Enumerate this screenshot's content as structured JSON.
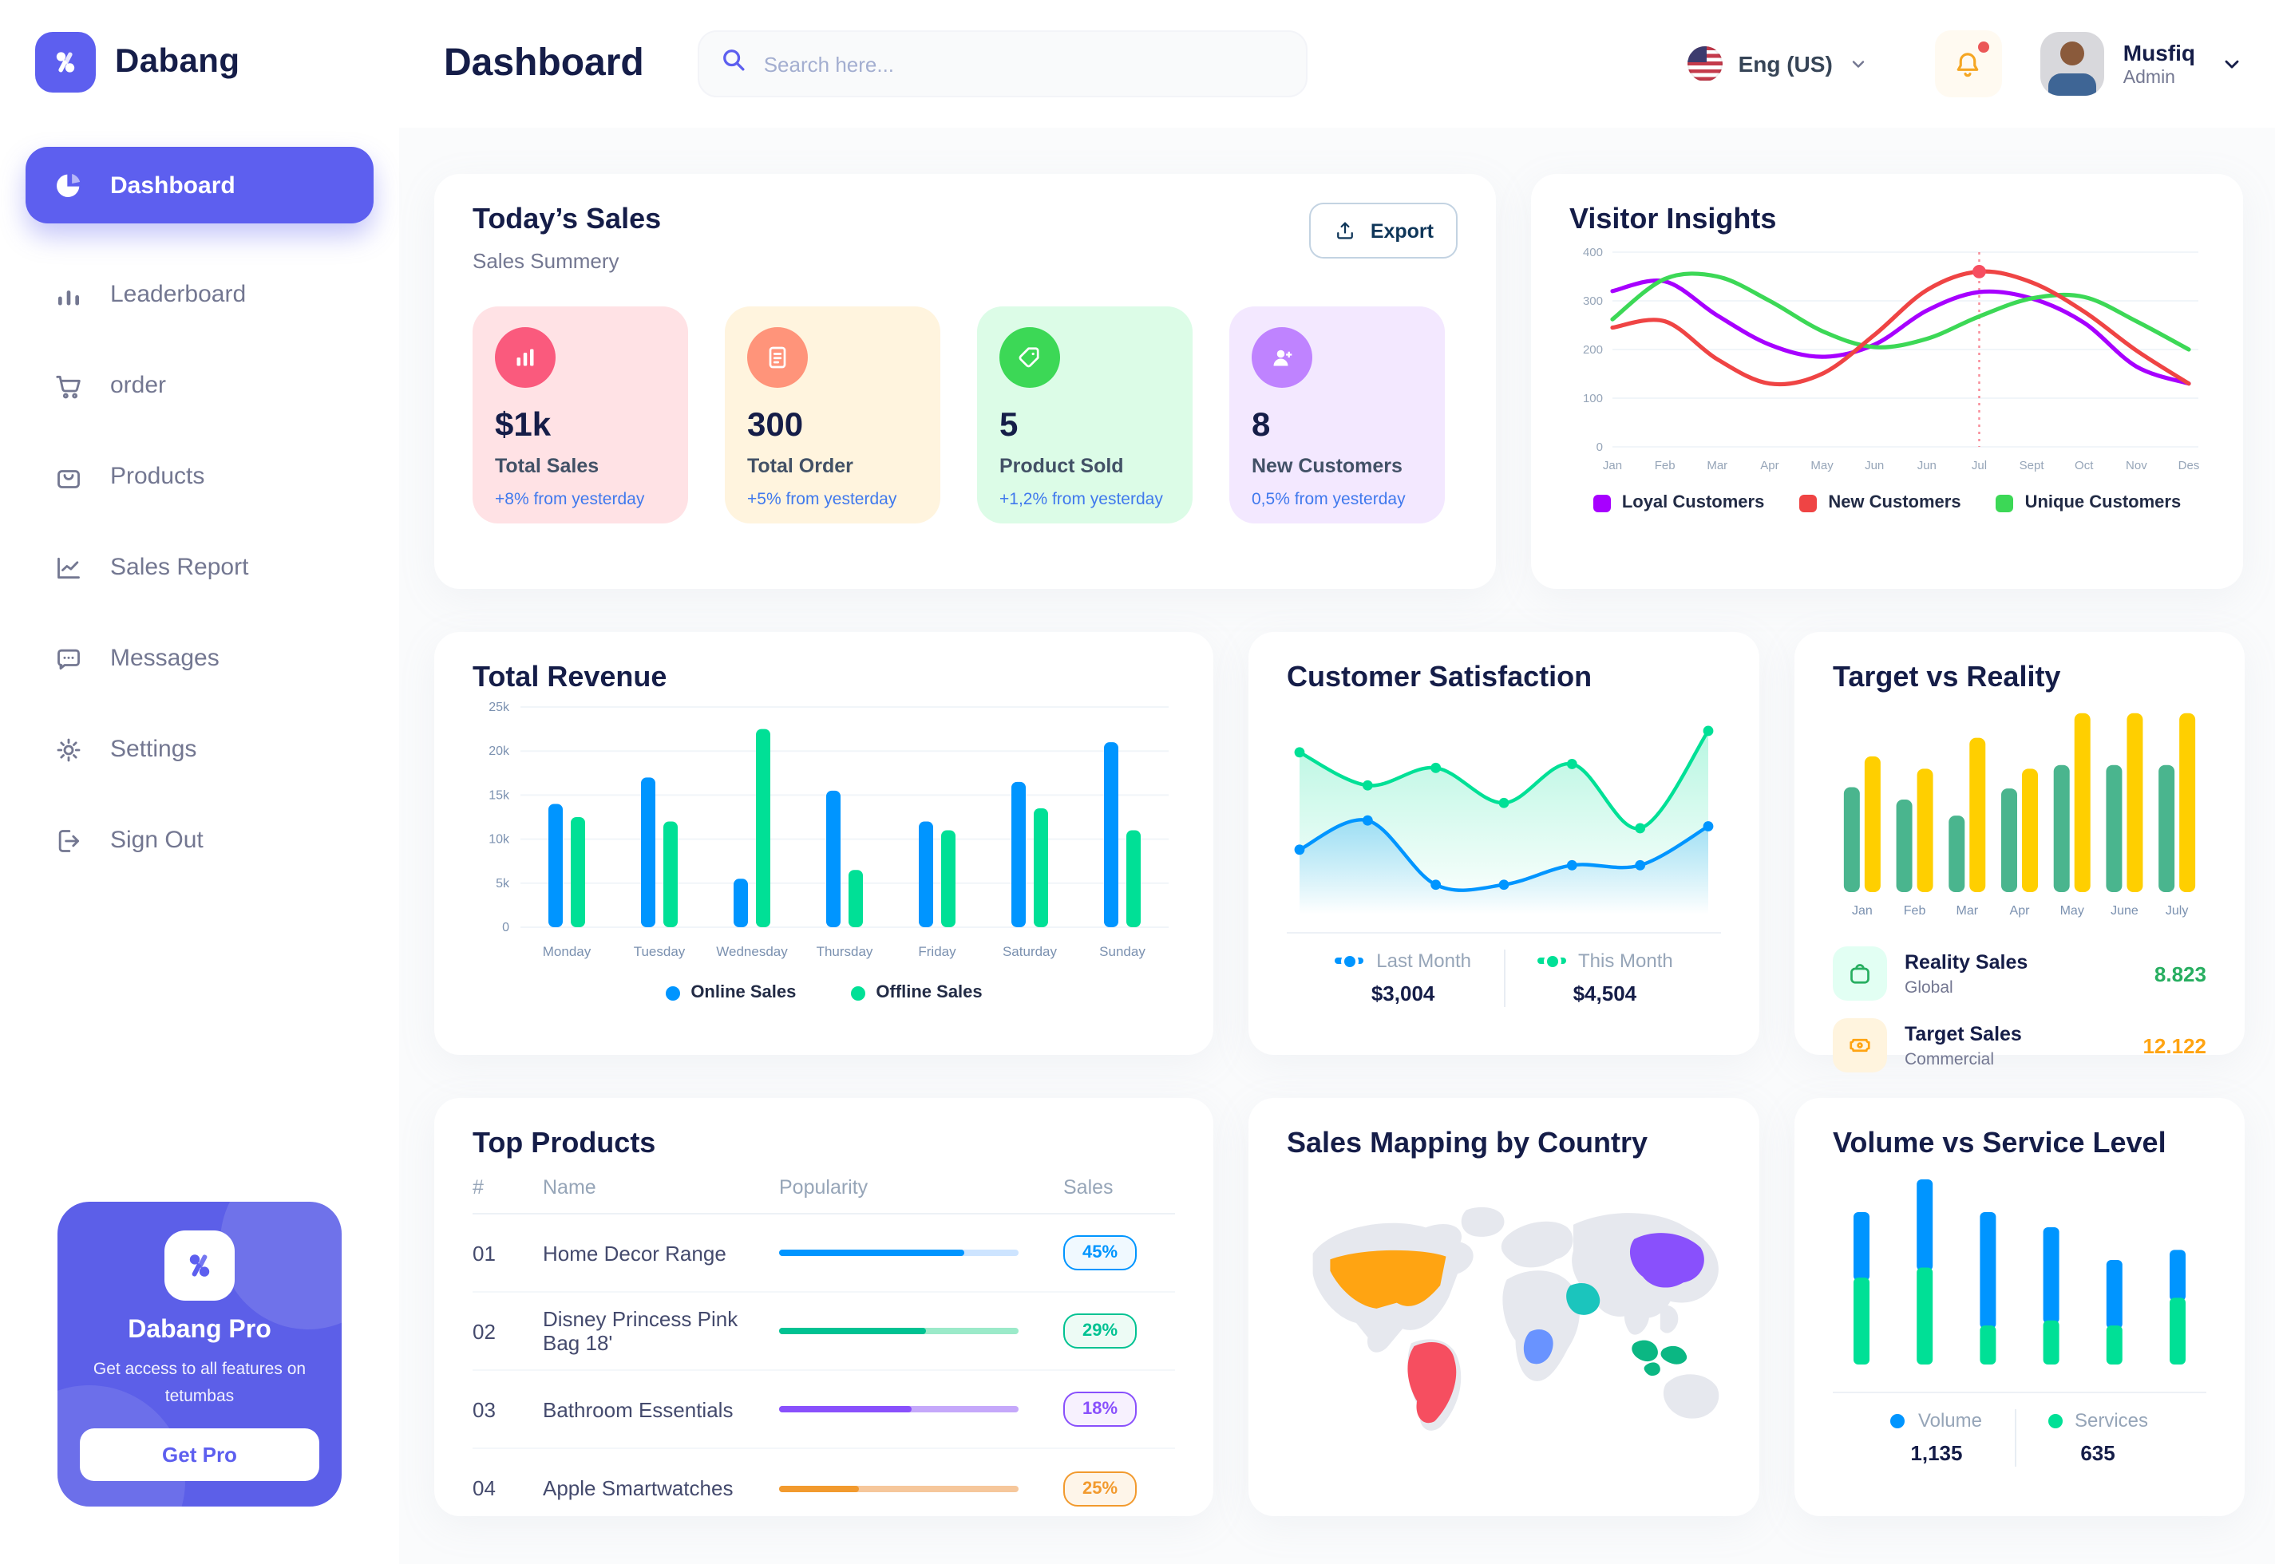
{
  "brand": {
    "name": "Dabang"
  },
  "header": {
    "title": "Dashboard",
    "search_placeholder": "Search here...",
    "language": "Eng (US)",
    "user": {
      "name": "Musfiq",
      "role": "Admin"
    }
  },
  "sidebar": {
    "items": [
      {
        "label": "Dashboard",
        "active": true
      },
      {
        "label": "Leaderboard",
        "active": false
      },
      {
        "label": "order",
        "active": false
      },
      {
        "label": "Products",
        "active": false
      },
      {
        "label": "Sales Report",
        "active": false
      },
      {
        "label": "Messages",
        "active": false
      },
      {
        "label": "Settings",
        "active": false
      },
      {
        "label": "Sign Out",
        "active": false
      }
    ],
    "pro": {
      "title": "Dabang Pro",
      "description": "Get access to all features on tetumbas",
      "cta": "Get Pro"
    }
  },
  "today_sales": {
    "title": "Today’s Sales",
    "subtitle": "Sales Summery",
    "export_label": "Export",
    "cards": [
      {
        "value": "$1k",
        "label": "Total Sales",
        "delta": "+8% from yesterday",
        "bg": "#FFE2E5",
        "accent": "#FA5A7D",
        "icon": "bar-chart"
      },
      {
        "value": "300",
        "label": "Total Order",
        "delta": "+5% from yesterday",
        "bg": "#FFF4DE",
        "accent": "#FF947A",
        "icon": "file"
      },
      {
        "value": "5",
        "label": "Product Sold",
        "delta": "+1,2% from yesterday",
        "bg": "#DCFCE7",
        "accent": "#3CD856",
        "icon": "tag"
      },
      {
        "value": "8",
        "label": "New Customers",
        "delta": "0,5% from yesterday",
        "bg": "#F3E8FF",
        "accent": "#BF83FF",
        "icon": "user-plus"
      }
    ]
  },
  "chart_data": [
    {
      "id": "visitor_insights",
      "type": "line",
      "title": "Visitor Insights",
      "x": [
        "Jan",
        "Feb",
        "Mar",
        "Apr",
        "May",
        "Jun",
        "Jun",
        "Jul",
        "Sept",
        "Oct",
        "Nov",
        "Des"
      ],
      "ylim": [
        0,
        400
      ],
      "yticks": [
        0,
        100,
        200,
        300,
        400
      ],
      "grid": true,
      "legend_position": "bottom",
      "annotation": {
        "type": "vline-marker",
        "x_index": 7,
        "series": "New Customers",
        "color": "#F64E60"
      },
      "series": [
        {
          "name": "Loyal Customers",
          "color": "#A700FF",
          "values": [
            320,
            340,
            270,
            210,
            185,
            210,
            280,
            318,
            305,
            255,
            165,
            130
          ]
        },
        {
          "name": "New Customers",
          "color": "#EF4444",
          "values": [
            245,
            258,
            180,
            130,
            150,
            230,
            322,
            360,
            338,
            278,
            198,
            130
          ]
        },
        {
          "name": "Unique Customers",
          "color": "#3CD856",
          "values": [
            262,
            345,
            350,
            300,
            238,
            205,
            222,
            268,
            305,
            308,
            258,
            200
          ]
        }
      ]
    },
    {
      "id": "total_revenue",
      "type": "bar",
      "title": "Total Revenue",
      "categories": [
        "Monday",
        "Tuesday",
        "Wednesday",
        "Thursday",
        "Friday",
        "Saturday",
        "Sunday"
      ],
      "ylim": [
        0,
        25000
      ],
      "yticks": [
        "0",
        "5k",
        "10k",
        "15k",
        "20k",
        "25k"
      ],
      "grid": true,
      "legend_position": "bottom",
      "series": [
        {
          "name": "Online Sales",
          "color": "#0095FF",
          "values": [
            14000,
            17000,
            5500,
            15500,
            12000,
            16500,
            21000
          ]
        },
        {
          "name": "Offline Sales",
          "color": "#00E096",
          "values": [
            12500,
            12000,
            22500,
            6500,
            11000,
            13500,
            11000
          ]
        }
      ]
    },
    {
      "id": "customer_satisfaction",
      "type": "area",
      "title": "Customer Satisfaction",
      "ylim": [
        0,
        100
      ],
      "grid": false,
      "legend_position": "bottom",
      "series": [
        {
          "name": "Last Month",
          "color": "#0095FF",
          "total": "$3,004",
          "values": [
            30,
            45,
            12,
            12,
            22,
            22,
            42
          ]
        },
        {
          "name": "This Month",
          "color": "#00E096",
          "total": "$4,504",
          "values": [
            80,
            63,
            72,
            54,
            74,
            41,
            91
          ]
        }
      ]
    },
    {
      "id": "target_vs_reality",
      "type": "bar",
      "title": "Target vs Reality",
      "categories": [
        "Jan",
        "Feb",
        "Mar",
        "Apr",
        "May",
        "June",
        "July"
      ],
      "ylim": [
        0,
        15
      ],
      "grid": false,
      "legend_position": "bottom",
      "series": [
        {
          "name": "Reality Sales",
          "subtitle": "Global",
          "color": "#4AB58E",
          "value_label": "8.823",
          "value_color": "#27AE60",
          "tile_bg": "#E2FFF3",
          "values": [
            8.5,
            7.5,
            6.2,
            8.4,
            10.3,
            10.3,
            10.3
          ]
        },
        {
          "name": "Target Sales",
          "subtitle": "Commercial",
          "color": "#FFCF00",
          "value_label": "12.122",
          "value_color": "#FFA412",
          "tile_bg": "#FFF4DE",
          "values": [
            11,
            10,
            12.5,
            10,
            14.5,
            14.5,
            14.5
          ]
        }
      ]
    },
    {
      "id": "top_products",
      "type": "table",
      "title": "Top Products",
      "columns": [
        "#",
        "Name",
        "Popularity",
        "Sales"
      ],
      "rows": [
        {
          "num": "01",
          "name": "Home Decor Range",
          "popularity": 77,
          "sales": "45%",
          "color": "#0095FF",
          "track": "#CDE4FF",
          "badge_bg": "#F0F9FF"
        },
        {
          "num": "02",
          "name": "Disney Princess Pink Bag 18'",
          "popularity": 61,
          "sales": "29%",
          "color": "#00C292",
          "track": "#9BEAC9",
          "badge_bg": "#EDFBF5"
        },
        {
          "num": "03",
          "name": "Bathroom Essentials",
          "popularity": 55,
          "sales": "18%",
          "color": "#8950FC",
          "track": "#C5A8FA",
          "badge_bg": "#F7F1FE"
        },
        {
          "num": "04",
          "name": "Apple Smartwatches",
          "popularity": 33,
          "sales": "25%",
          "color": "#F29A2E",
          "track": "#F6C79B",
          "badge_bg": "#FEF5E9"
        }
      ]
    },
    {
      "id": "sales_map",
      "type": "map",
      "title": "Sales Mapping by Country",
      "countries": [
        {
          "code": "us",
          "name": "United States",
          "color": "#FFA412"
        },
        {
          "code": "br",
          "name": "Brazil",
          "color": "#F64E60"
        },
        {
          "code": "sa",
          "name": "Saudi Arabia",
          "color": "#1BC5BD"
        },
        {
          "code": "cd",
          "name": "Dem. Rep. Congo",
          "color": "#6993FF"
        },
        {
          "code": "cn",
          "name": "China",
          "color": "#8950FC"
        },
        {
          "code": "id",
          "name": "Indonesia",
          "color": "#0BB783"
        }
      ]
    },
    {
      "id": "volume_service",
      "type": "stacked-bar",
      "title": "Volume vs Service Level",
      "legend_position": "bottom",
      "series": [
        {
          "name": "Volume",
          "color": "#0095FF",
          "total": "1,135",
          "values": [
            260,
            350,
            450,
            370,
            260,
            190
          ]
        },
        {
          "name": "Services",
          "color": "#00E096",
          "total": "635",
          "values": [
            345,
            385,
            155,
            175,
            155,
            265
          ]
        }
      ]
    }
  ]
}
